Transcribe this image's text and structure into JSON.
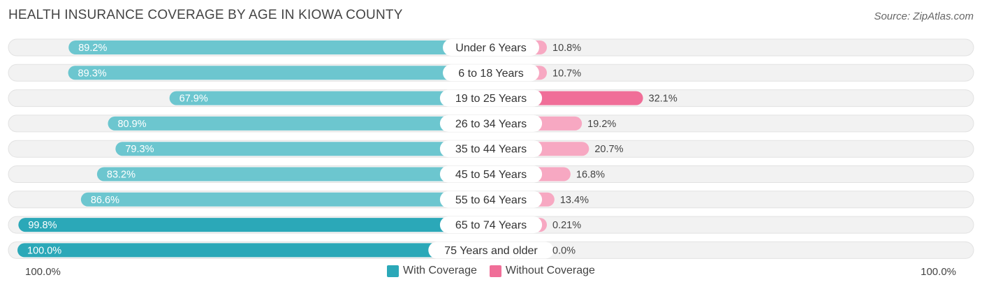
{
  "title": "HEALTH INSURANCE COVERAGE BY AGE IN KIOWA COUNTY",
  "source": "Source: ZipAtlas.com",
  "colors": {
    "with_coverage": "#2ba8b8",
    "with_coverage_light": "#6cc6cf",
    "without_coverage": "#f06e98",
    "without_coverage_light": "#f7a8c2",
    "track": "#f1f1f1"
  },
  "legend": {
    "with_label": "With Coverage",
    "without_label": "Without Coverage"
  },
  "axis": {
    "left_label": "100.0%",
    "right_label": "100.0%"
  },
  "chart_data": {
    "type": "bar",
    "orientation": "horizontal-diverging",
    "categories": [
      "Under 6 Years",
      "6 to 18 Years",
      "19 to 25 Years",
      "26 to 34 Years",
      "35 to 44 Years",
      "45 to 54 Years",
      "55 to 64 Years",
      "65 to 74 Years",
      "75 Years and older"
    ],
    "series": [
      {
        "name": "With Coverage",
        "values": [
          89.2,
          89.3,
          67.9,
          80.9,
          79.3,
          83.2,
          86.6,
          99.8,
          100.0
        ],
        "labels": [
          "89.2%",
          "89.3%",
          "67.9%",
          "80.9%",
          "79.3%",
          "83.2%",
          "86.6%",
          "99.8%",
          "100.0%"
        ]
      },
      {
        "name": "Without Coverage",
        "values": [
          10.8,
          10.7,
          32.1,
          19.2,
          20.7,
          16.8,
          13.4,
          0.21,
          0.0
        ],
        "labels": [
          "10.8%",
          "10.7%",
          "32.1%",
          "19.2%",
          "20.7%",
          "16.8%",
          "13.4%",
          "0.21%",
          "0.0%"
        ]
      }
    ],
    "xlim": [
      -100,
      100
    ],
    "title": "HEALTH INSURANCE COVERAGE BY AGE IN KIOWA COUNTY"
  }
}
